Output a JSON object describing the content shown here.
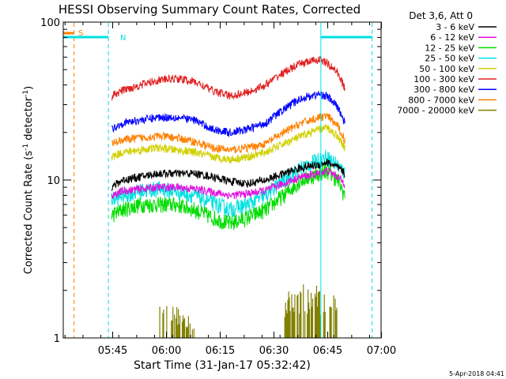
{
  "chart_data": {
    "type": "line",
    "title": "HESSI Observing Summary Count Rates, Corrected",
    "xlabel": "Start Time (31-Jan-17 05:32:42)",
    "ylabel": "Corrected Count Rate (s⁻¹ detector⁻¹)",
    "yscale": "log",
    "ylim": [
      1,
      100
    ],
    "xlim_minutes": [
      -1.5,
      87.2
    ],
    "xtick_labels": [
      "05:45",
      "06:00",
      "06:15",
      "06:30",
      "06:45",
      "07:00"
    ],
    "xtick_minutes": [
      12.3,
      27.3,
      42.3,
      57.3,
      72.3,
      87.3
    ],
    "ytick_labels": [
      "1",
      "10",
      "100"
    ],
    "ytick_values": [
      1,
      10,
      100
    ],
    "legend_title": "Det 3,6, Att 0",
    "legend_position": "right",
    "footer": "5-Apr-2018 04:41",
    "time_x_minutes": [
      12,
      15,
      20,
      25,
      30,
      35,
      40,
      45,
      50,
      55,
      60,
      65,
      70,
      72,
      75,
      77
    ],
    "series": [
      {
        "name": "3 - 6 keV",
        "color": "#000000",
        "values": [
          9,
          10,
          10.5,
          11,
          11,
          11,
          10.5,
          9.8,
          9.5,
          10,
          11,
          12,
          12.5,
          13,
          12,
          11
        ]
      },
      {
        "name": "6 - 12 keV",
        "color": "#e010e0",
        "values": [
          8,
          8.5,
          8.8,
          9,
          9,
          8.8,
          8.4,
          8,
          8.2,
          8.6,
          9.5,
          10.5,
          11,
          11.5,
          10.5,
          9.5
        ]
      },
      {
        "name": "12 - 25 keV",
        "color": "#00dd00",
        "values": [
          6,
          6.5,
          7,
          7,
          7,
          6.5,
          5.8,
          5.3,
          5.8,
          6.5,
          8,
          10,
          11,
          11.5,
          10,
          8
        ]
      },
      {
        "name": "25 - 50 keV",
        "color": "#00e0e0",
        "values": [
          7.5,
          8,
          8.5,
          8.8,
          8.5,
          8,
          7.2,
          6.5,
          7,
          8,
          10,
          12,
          13.5,
          14,
          12.5,
          11
        ]
      },
      {
        "name": "50 - 100 keV",
        "color": "#d0d000",
        "values": [
          14,
          15,
          15.5,
          16,
          15.5,
          15,
          14,
          13.5,
          14,
          15,
          17,
          19,
          21,
          21.5,
          19,
          16
        ]
      },
      {
        "name": "100 - 300 keV",
        "color": "#e02020",
        "values": [
          34,
          37,
          40,
          43,
          44,
          42,
          37,
          34,
          36,
          40,
          48,
          55,
          58,
          55,
          48,
          38
        ]
      },
      {
        "name": "300 - 800 keV",
        "color": "#0000ff",
        "values": [
          21,
          23,
          24,
          25,
          25,
          24,
          21,
          20,
          21,
          23,
          28,
          33,
          35,
          34,
          29,
          23
        ]
      },
      {
        "name": "800 - 7000 keV",
        "color": "#ff8000",
        "values": [
          17,
          18,
          18.5,
          19,
          18.5,
          17.5,
          16,
          15.5,
          16,
          17,
          20,
          23,
          25,
          25.5,
          22,
          18
        ]
      },
      {
        "name": "7000 - 20000 keV",
        "color": "#808000",
        "values": [
          null,
          null,
          null,
          1.4,
          1.4,
          1.2,
          null,
          null,
          null,
          null,
          1.6,
          1.8,
          1.8,
          1.8,
          1.5,
          null
        ]
      }
    ],
    "annotations": [
      {
        "text": "S",
        "color": "#ff8000"
      },
      {
        "text": "N",
        "color": "#00e0e0"
      }
    ],
    "markers": [
      {
        "kind": "dashed-vertical",
        "color": "#ff8000",
        "x_minutes": 1.5
      },
      {
        "kind": "dashed-vertical",
        "color": "#00e0e0",
        "x_minutes": 11.1
      },
      {
        "kind": "solid-vertical",
        "color": "#00e0e0",
        "x_minutes": 70.4
      },
      {
        "kind": "dashed-vertical",
        "color": "#00e0e0",
        "x_minutes": 84.7
      }
    ],
    "grid": false
  }
}
